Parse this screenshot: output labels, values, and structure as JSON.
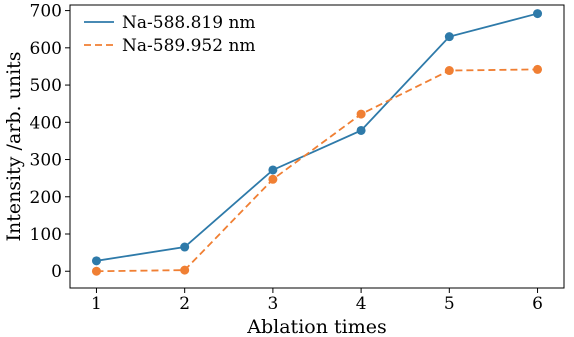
{
  "chart_data": {
    "type": "line",
    "xlabel": "Ablation times",
    "ylabel": "Intensity /arb. units",
    "x": [
      1,
      2,
      3,
      4,
      5,
      6
    ],
    "xlim": [
      0.7,
      6.3
    ],
    "ylim": [
      -45,
      715
    ],
    "xticks": [
      1,
      2,
      3,
      4,
      5,
      6
    ],
    "yticks": [
      0,
      100,
      200,
      300,
      400,
      500,
      600,
      700
    ],
    "grid": false,
    "legend_position": "top-left",
    "series": [
      {
        "name": "Na-588.819 nm",
        "values": [
          28,
          65,
          272,
          378,
          630,
          692
        ],
        "color": "#2e7aa9",
        "line_style": "solid",
        "marker": "circle"
      },
      {
        "name": "Na-589.952 nm",
        "values": [
          0,
          3,
          247,
          422,
          539,
          542
        ],
        "color": "#f07f33",
        "line_style": "dashed",
        "marker": "circle"
      }
    ]
  }
}
